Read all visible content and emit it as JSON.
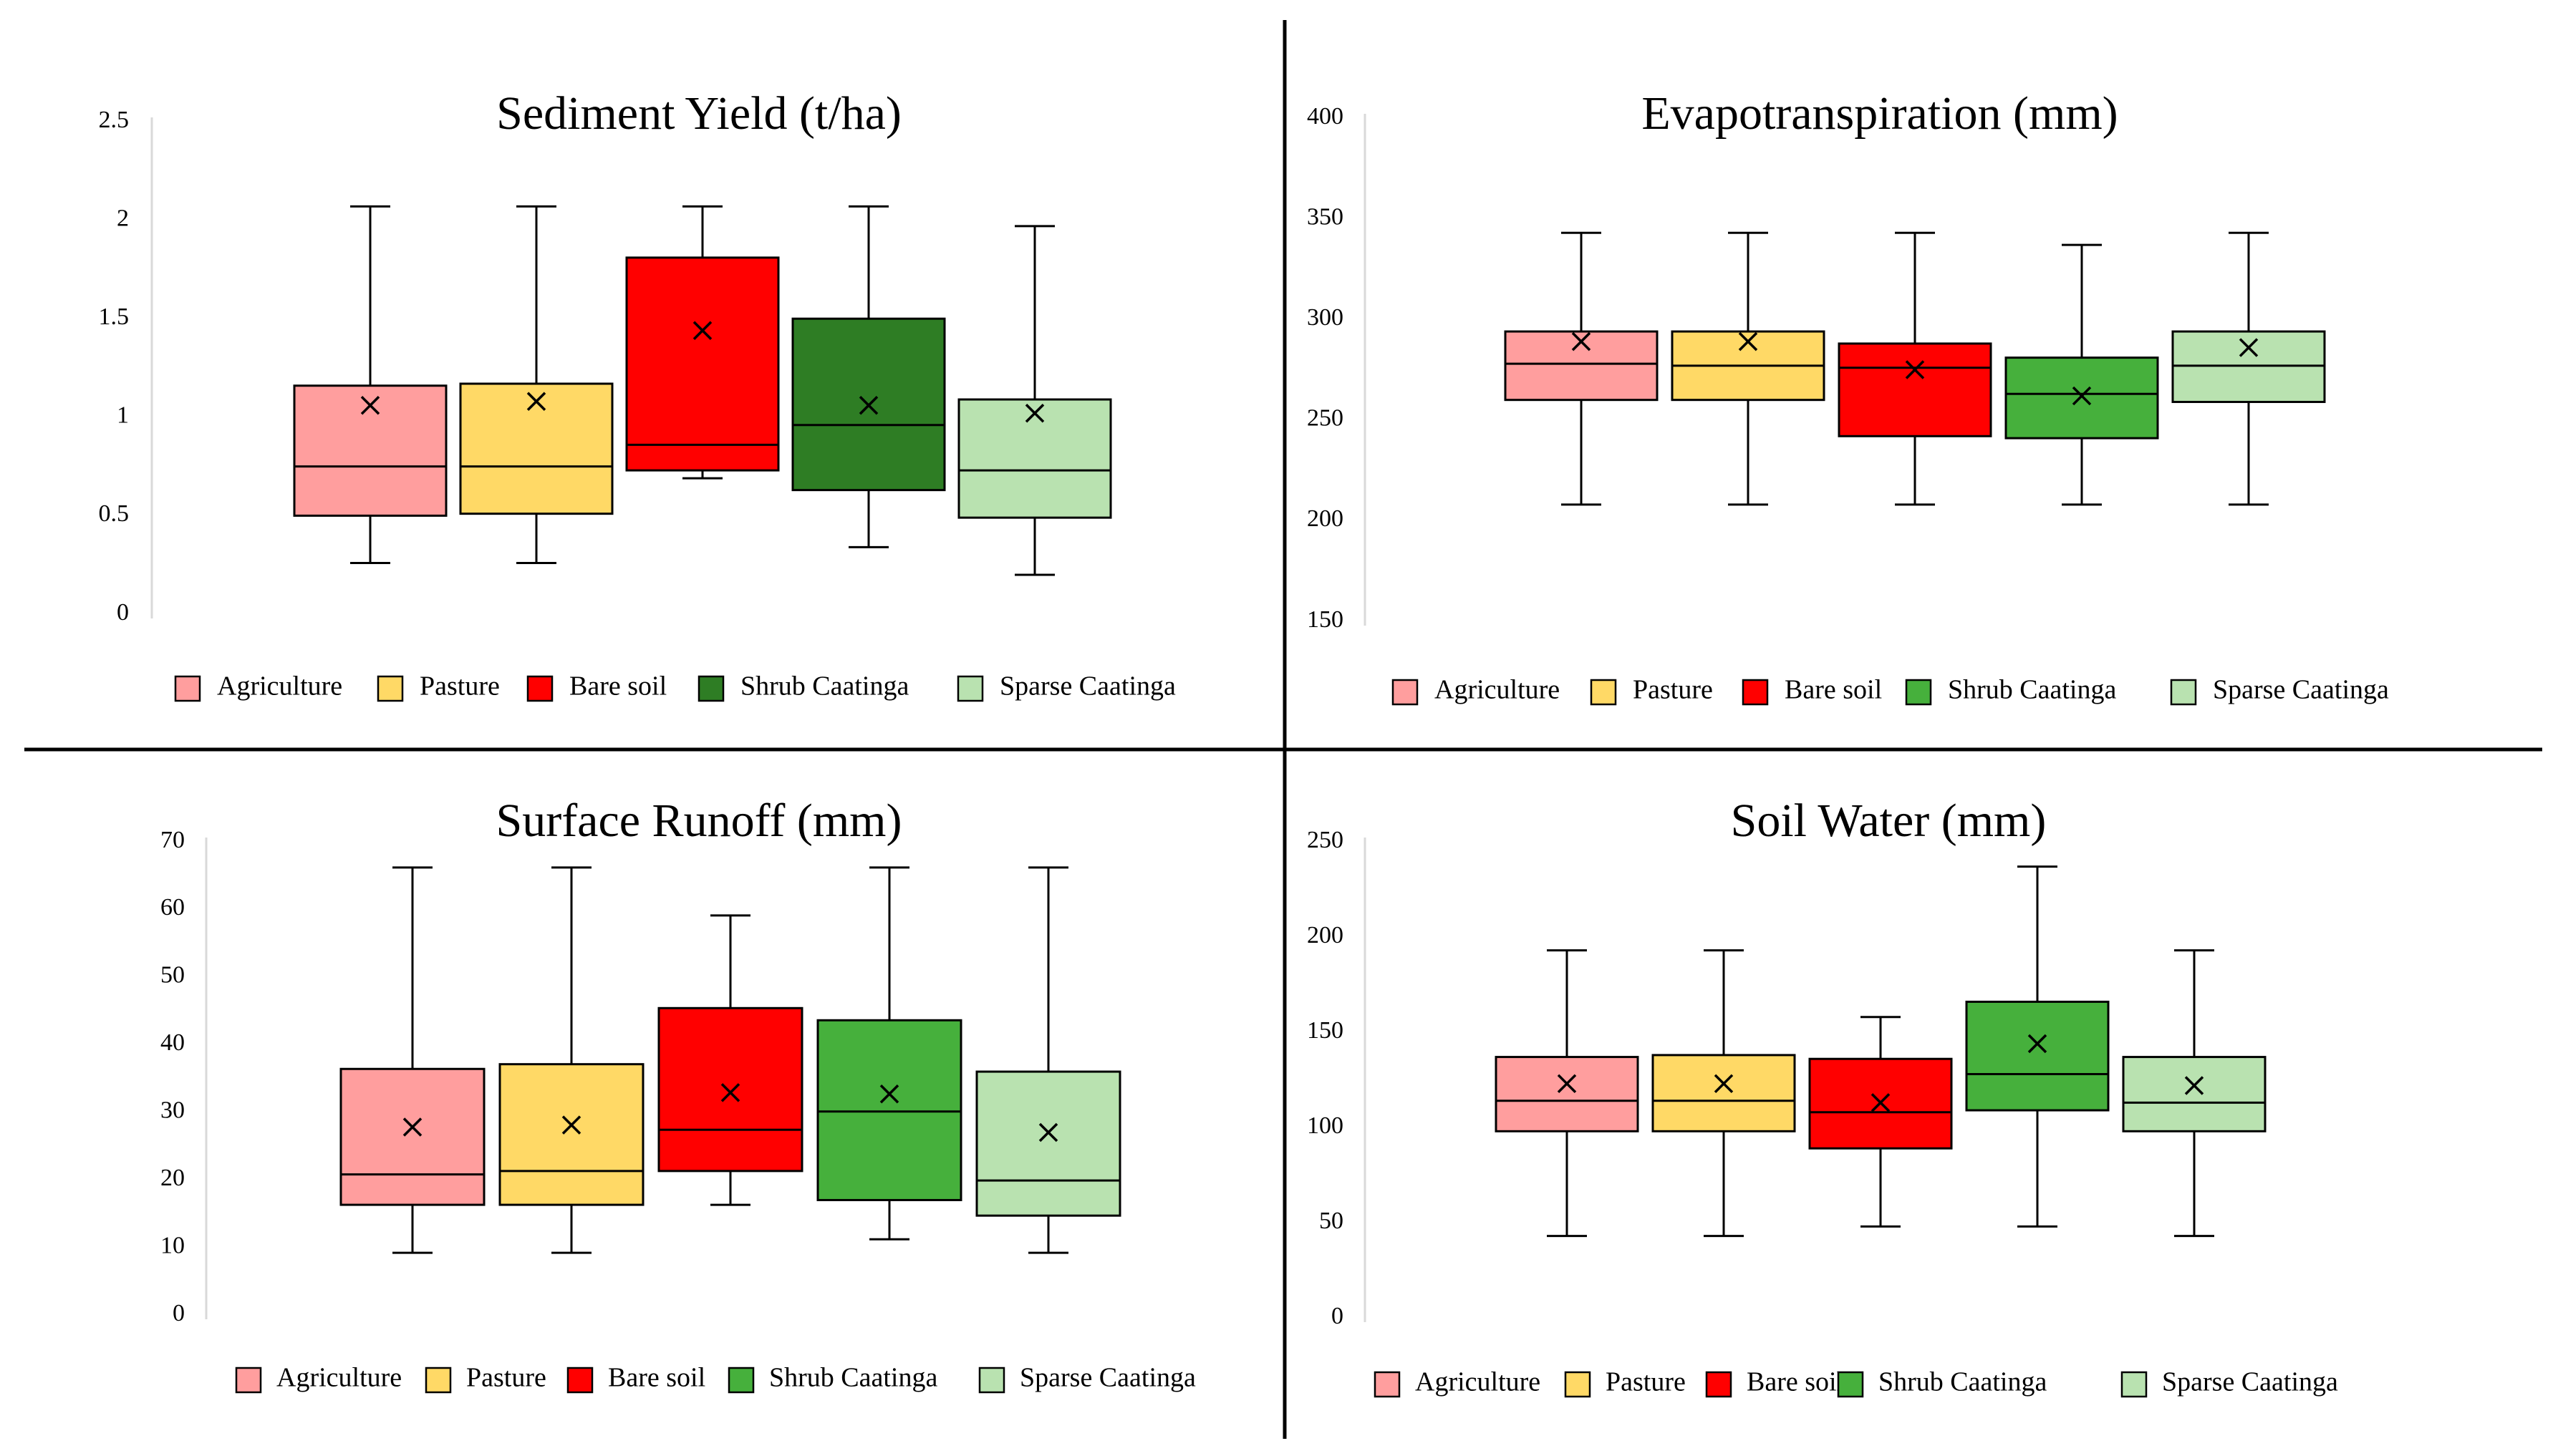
{
  "chart_data": [
    {
      "type": "box",
      "title": "Sediment Yield (t/ha)",
      "ylim": [
        0,
        2.5
      ],
      "yticks": [
        0,
        0.5,
        1,
        1.5,
        2,
        2.5
      ],
      "legend_position": "bottom",
      "categories": [
        "Agriculture",
        "Pasture",
        "Bare soil",
        "Shrub Caatinga",
        "Sparse Caatinga"
      ],
      "colors": [
        "#ff9e9e",
        "#ffd966",
        "#ff0000",
        "#2e7d24",
        "#b9e2b0"
      ],
      "boxes": [
        {
          "min": 0.26,
          "q1": 0.5,
          "median": 0.75,
          "q3": 1.16,
          "max": 2.07,
          "mean": 1.06
        },
        {
          "min": 0.26,
          "q1": 0.51,
          "median": 0.75,
          "q3": 1.17,
          "max": 2.07,
          "mean": 1.08
        },
        {
          "min": 0.69,
          "q1": 0.73,
          "median": 0.86,
          "q3": 1.81,
          "max": 2.07,
          "mean": 1.44
        },
        {
          "min": 0.34,
          "q1": 0.63,
          "median": 0.96,
          "q3": 1.5,
          "max": 2.07,
          "mean": 1.06
        },
        {
          "min": 0.2,
          "q1": 0.49,
          "median": 0.73,
          "q3": 1.09,
          "max": 1.97,
          "mean": 1.02
        }
      ]
    },
    {
      "type": "box",
      "title": "Evapotranspiration (mm)",
      "ylim": [
        150,
        400
      ],
      "yticks": [
        150,
        200,
        250,
        300,
        350,
        400
      ],
      "legend_position": "bottom",
      "categories": [
        "Agriculture",
        "Pasture",
        "Bare soil",
        "Shrub Caatinga",
        "Sparse Caatinga"
      ],
      "colors": [
        "#ff9e9e",
        "#ffd966",
        "#ff0000",
        "#46b03c",
        "#b9e2b0"
      ],
      "boxes": [
        {
          "min": 208,
          "q1": 260,
          "median": 278,
          "q3": 294,
          "max": 343,
          "mean": 289
        },
        {
          "min": 208,
          "q1": 260,
          "median": 277,
          "q3": 294,
          "max": 343,
          "mean": 289
        },
        {
          "min": 208,
          "q1": 242,
          "median": 276,
          "q3": 288,
          "max": 343,
          "mean": 275
        },
        {
          "min": 208,
          "q1": 241,
          "median": 263,
          "q3": 281,
          "max": 337,
          "mean": 262
        },
        {
          "min": 208,
          "q1": 259,
          "median": 277,
          "q3": 294,
          "max": 343,
          "mean": 286
        }
      ]
    },
    {
      "type": "box",
      "title": "Surface Runoff (mm)",
      "ylim": [
        0,
        70
      ],
      "yticks": [
        0,
        10,
        20,
        30,
        40,
        50,
        60,
        70
      ],
      "legend_position": "bottom",
      "categories": [
        "Agriculture",
        "Pasture",
        "Bare soil",
        "Shrub Caatinga",
        "Sparse Caatinga"
      ],
      "colors": [
        "#ff9e9e",
        "#ffd966",
        "#ff0000",
        "#46b03c",
        "#b9e2b0"
      ],
      "boxes": [
        {
          "min": 9.2,
          "q1": 16.3,
          "median": 20.8,
          "q3": 36.4,
          "max": 66.2,
          "mean": 27.8
        },
        {
          "min": 9.2,
          "q1": 16.3,
          "median": 21.3,
          "q3": 37.1,
          "max": 66.2,
          "mean": 28.1
        },
        {
          "min": 16.3,
          "q1": 21.3,
          "median": 27.4,
          "q3": 45.4,
          "max": 59.1,
          "mean": 32.9
        },
        {
          "min": 11.2,
          "q1": 17.0,
          "median": 30.1,
          "q3": 43.6,
          "max": 66.2,
          "mean": 32.7
        },
        {
          "min": 9.2,
          "q1": 14.7,
          "median": 19.9,
          "q3": 36.0,
          "max": 66.2,
          "mean": 27.0
        }
      ]
    },
    {
      "type": "box",
      "title": "Soil Water (mm)",
      "ylim": [
        0,
        250
      ],
      "yticks": [
        0,
        50,
        100,
        150,
        200,
        250
      ],
      "legend_position": "bottom",
      "categories": [
        "Agriculture",
        "Pasture",
        "Bare soil",
        "Shrub Caatinga",
        "Sparse Caatinga"
      ],
      "colors": [
        "#ff9e9e",
        "#ffd966",
        "#ff0000",
        "#46b03c",
        "#b9e2b0"
      ],
      "boxes": [
        {
          "min": 43,
          "q1": 98,
          "median": 114,
          "q3": 137,
          "max": 193,
          "mean": 123
        },
        {
          "min": 43,
          "q1": 98,
          "median": 114,
          "q3": 138,
          "max": 193,
          "mean": 123
        },
        {
          "min": 48,
          "q1": 89,
          "median": 108,
          "q3": 136,
          "max": 158,
          "mean": 113
        },
        {
          "min": 48,
          "q1": 109,
          "median": 128,
          "q3": 166,
          "max": 237,
          "mean": 144
        },
        {
          "min": 43,
          "q1": 98,
          "median": 113,
          "q3": 137,
          "max": 193,
          "mean": 122
        }
      ]
    }
  ]
}
